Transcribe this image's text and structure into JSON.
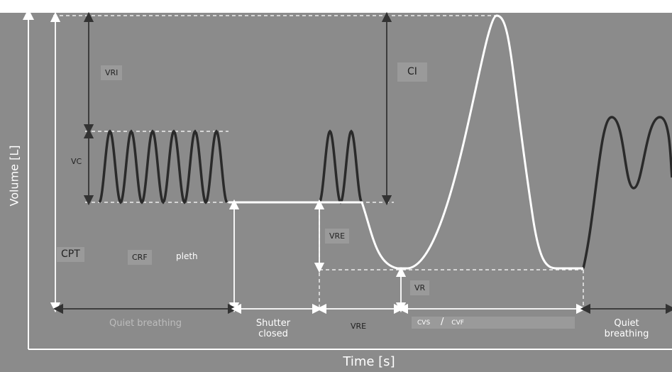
{
  "axes": {
    "y_label": "Volume [L]",
    "x_label": "Time [s]"
  },
  "volume_labels": {
    "vri": "VRI",
    "ci": "CI",
    "vc": "VC",
    "cpt": "CPT",
    "crf": "CRF",
    "pleth": "pleth",
    "vre": "VRE",
    "vr": "VR"
  },
  "phases": {
    "quiet_1": "Quiet breathing",
    "shutter": "Shutter closed",
    "vre": "VRE",
    "cvs": "CVS",
    "slash": "/",
    "cvf": "CVF",
    "quiet_2": "Quiet breathing"
  }
}
